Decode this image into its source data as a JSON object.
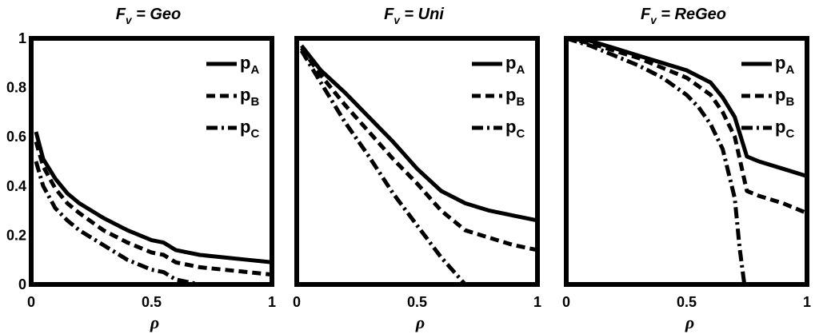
{
  "chart_data": [
    {
      "type": "line",
      "title": {
        "main": "F",
        "sub": "v",
        "rest": " = Geo"
      },
      "xlabel": "ρ",
      "xlim": [
        0,
        1
      ],
      "ylim": [
        0,
        1
      ],
      "xticks": [
        "0",
        "0.5",
        "1"
      ],
      "yticks": [
        "0",
        "0.2",
        "0.4",
        "0.6",
        "0.8",
        "1"
      ],
      "legend": "top-right",
      "series": [
        {
          "name": {
            "main": "p",
            "sub": "A"
          },
          "style": "solid",
          "x": [
            0.02,
            0.05,
            0.1,
            0.15,
            0.2,
            0.3,
            0.4,
            0.5,
            0.55,
            0.6,
            0.7,
            0.8,
            0.9,
            1.0
          ],
          "y": [
            0.62,
            0.51,
            0.43,
            0.37,
            0.33,
            0.27,
            0.22,
            0.18,
            0.17,
            0.14,
            0.12,
            0.11,
            0.1,
            0.09
          ]
        },
        {
          "name": {
            "main": "p",
            "sub": "B"
          },
          "style": "dashed",
          "x": [
            0.02,
            0.05,
            0.1,
            0.15,
            0.2,
            0.3,
            0.4,
            0.5,
            0.55,
            0.6,
            0.7,
            0.8,
            0.9,
            1.0
          ],
          "y": [
            0.58,
            0.48,
            0.39,
            0.33,
            0.29,
            0.22,
            0.17,
            0.13,
            0.12,
            0.09,
            0.07,
            0.06,
            0.05,
            0.04
          ]
        },
        {
          "name": {
            "main": "p",
            "sub": "C"
          },
          "style": "dashdot",
          "x": [
            0.02,
            0.05,
            0.1,
            0.15,
            0.2,
            0.3,
            0.4,
            0.5,
            0.55,
            0.6,
            0.65,
            0.7,
            1.0
          ],
          "y": [
            0.5,
            0.4,
            0.31,
            0.26,
            0.22,
            0.16,
            0.1,
            0.06,
            0.05,
            0.02,
            0.01,
            0.0,
            0.0
          ]
        }
      ]
    },
    {
      "type": "line",
      "title": {
        "main": "F",
        "sub": "v",
        "rest": " = Uni"
      },
      "xlabel": "ρ",
      "xlim": [
        0,
        1
      ],
      "ylim": [
        0,
        1
      ],
      "xticks": [
        "0",
        "0.5",
        "1"
      ],
      "yticks": [],
      "legend": "top-right",
      "series": [
        {
          "name": {
            "main": "p",
            "sub": "A"
          },
          "style": "solid",
          "x": [
            0.02,
            0.1,
            0.2,
            0.3,
            0.4,
            0.5,
            0.6,
            0.7,
            0.8,
            0.9,
            1.0
          ],
          "y": [
            0.97,
            0.87,
            0.78,
            0.68,
            0.58,
            0.47,
            0.38,
            0.33,
            0.3,
            0.28,
            0.26
          ]
        },
        {
          "name": {
            "main": "p",
            "sub": "B"
          },
          "style": "dashed",
          "x": [
            0.02,
            0.1,
            0.2,
            0.3,
            0.4,
            0.5,
            0.6,
            0.7,
            0.8,
            0.9,
            1.0
          ],
          "y": [
            0.96,
            0.85,
            0.73,
            0.62,
            0.51,
            0.41,
            0.3,
            0.22,
            0.19,
            0.16,
            0.14
          ]
        },
        {
          "name": {
            "main": "p",
            "sub": "C"
          },
          "style": "dashdot",
          "x": [
            0.02,
            0.1,
            0.2,
            0.3,
            0.4,
            0.5,
            0.6,
            0.7,
            1.0
          ],
          "y": [
            0.95,
            0.82,
            0.66,
            0.52,
            0.37,
            0.24,
            0.11,
            0.0,
            0.0
          ]
        }
      ]
    },
    {
      "type": "line",
      "title": {
        "main": "F",
        "sub": "v",
        "rest": " = ReGeo"
      },
      "xlabel": "ρ",
      "xlim": [
        0,
        1
      ],
      "ylim": [
        0,
        1
      ],
      "xticks": [
        "0",
        "0.5",
        "1"
      ],
      "yticks": [],
      "legend": "top-right",
      "series": [
        {
          "name": {
            "main": "p",
            "sub": "A"
          },
          "style": "solid",
          "x": [
            0.0,
            0.1,
            0.2,
            0.3,
            0.4,
            0.5,
            0.6,
            0.65,
            0.7,
            0.75,
            0.8,
            0.9,
            1.0
          ],
          "y": [
            1.0,
            0.99,
            0.96,
            0.93,
            0.9,
            0.87,
            0.82,
            0.76,
            0.68,
            0.52,
            0.5,
            0.47,
            0.44
          ]
        },
        {
          "name": {
            "main": "p",
            "sub": "B"
          },
          "style": "dashed",
          "x": [
            0.0,
            0.1,
            0.2,
            0.3,
            0.4,
            0.5,
            0.6,
            0.65,
            0.7,
            0.75,
            0.8,
            0.9,
            1.0
          ],
          "y": [
            1.0,
            0.98,
            0.95,
            0.92,
            0.88,
            0.84,
            0.77,
            0.7,
            0.6,
            0.38,
            0.36,
            0.33,
            0.29
          ]
        },
        {
          "name": {
            "main": "p",
            "sub": "C"
          },
          "style": "dashdot",
          "x": [
            0.0,
            0.1,
            0.2,
            0.3,
            0.4,
            0.5,
            0.55,
            0.6,
            0.65,
            0.7,
            0.72,
            0.74,
            1.0
          ],
          "y": [
            1.0,
            0.97,
            0.93,
            0.89,
            0.84,
            0.77,
            0.72,
            0.65,
            0.55,
            0.35,
            0.15,
            0.0,
            0.0
          ]
        }
      ]
    }
  ]
}
